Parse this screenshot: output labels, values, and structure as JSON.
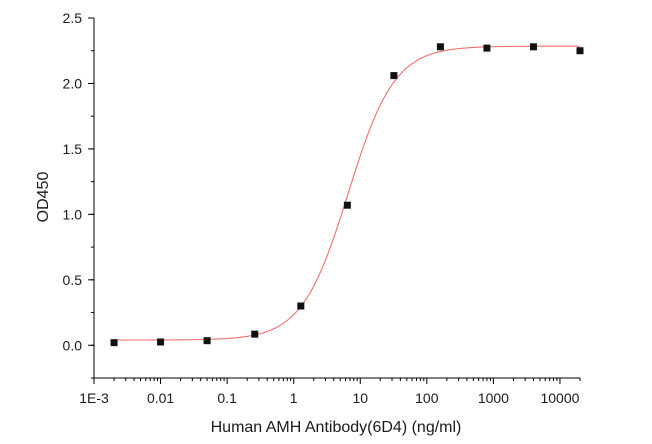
{
  "chart_data": {
    "type": "scatter",
    "title": "",
    "xlabel": "Human AMH Antibody(6D4) (ng/ml)",
    "ylabel": "OD450",
    "xscale": "log",
    "xlim": [
      0.001,
      20000
    ],
    "ylim": [
      -0.25,
      2.5
    ],
    "xticks": [
      0.001,
      0.01,
      0.1,
      1,
      10,
      100,
      1000,
      10000
    ],
    "xtick_labels": [
      "1E-3",
      "0.01",
      "0.1",
      "1",
      "10",
      "100",
      "1000",
      "10000"
    ],
    "yticks": [
      0.0,
      0.5,
      1.0,
      1.5,
      2.0,
      2.5
    ],
    "ytick_labels": [
      "0.0",
      "0.5",
      "1.0",
      "1.5",
      "2.0",
      "2.5"
    ],
    "grid": false,
    "legend": "none",
    "point_color": "#111111",
    "curve_color": "#f07070",
    "series": [
      {
        "x": [
          0.002,
          0.01,
          0.05,
          0.26,
          1.28,
          6.4,
          32,
          160,
          800,
          4000,
          20000
        ],
        "y": [
          0.02,
          0.025,
          0.035,
          0.085,
          0.3,
          1.07,
          2.06,
          2.28,
          2.27,
          2.28,
          2.25
        ]
      }
    ],
    "fit": {
      "model": "4PL",
      "bottom": 0.04,
      "top": 2.285,
      "ec50": 6.6,
      "hill": 1.25
    }
  }
}
